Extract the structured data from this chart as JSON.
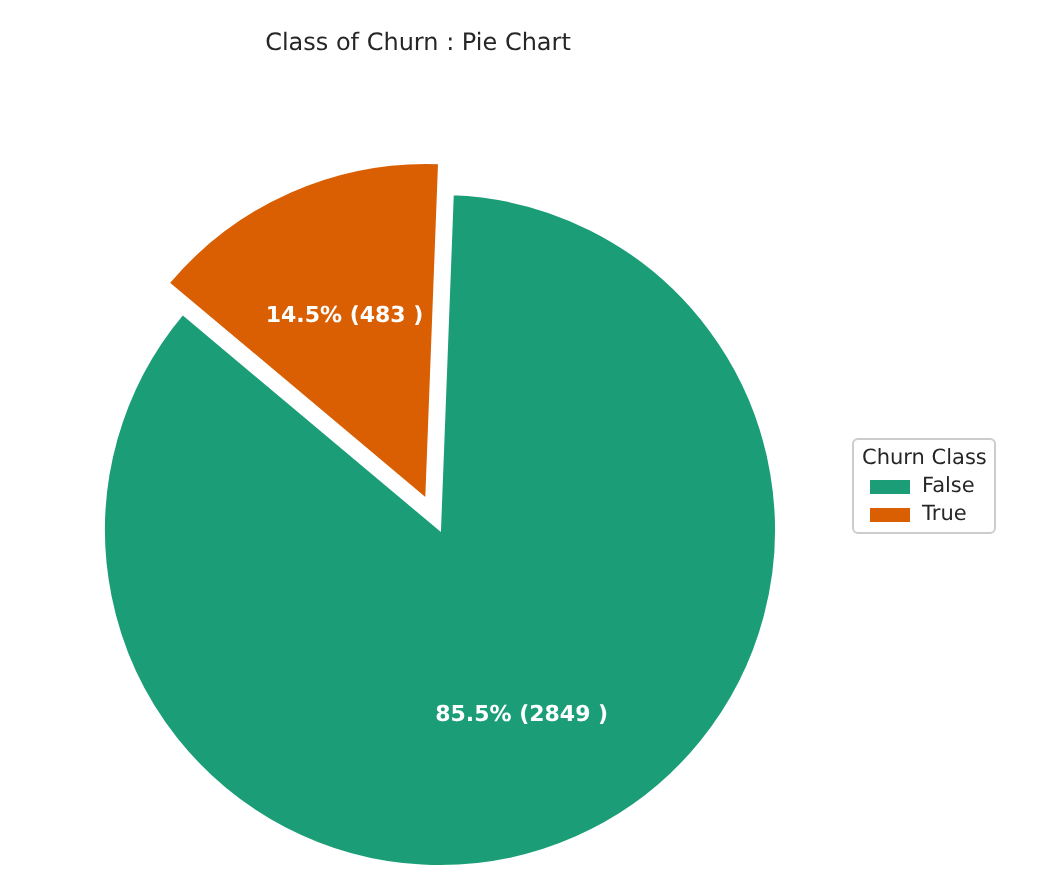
{
  "chart_data": {
    "type": "pie",
    "title": "Class of Churn : Pie Chart",
    "legend_title": "Churn Class",
    "categories": [
      "False",
      "True"
    ],
    "values": [
      2849,
      483
    ],
    "colors": [
      "#1b9e77",
      "#d95f02"
    ],
    "value_labels": [
      "85.5% (2849 )",
      "14.5% (483 )"
    ],
    "legend": "right"
  }
}
